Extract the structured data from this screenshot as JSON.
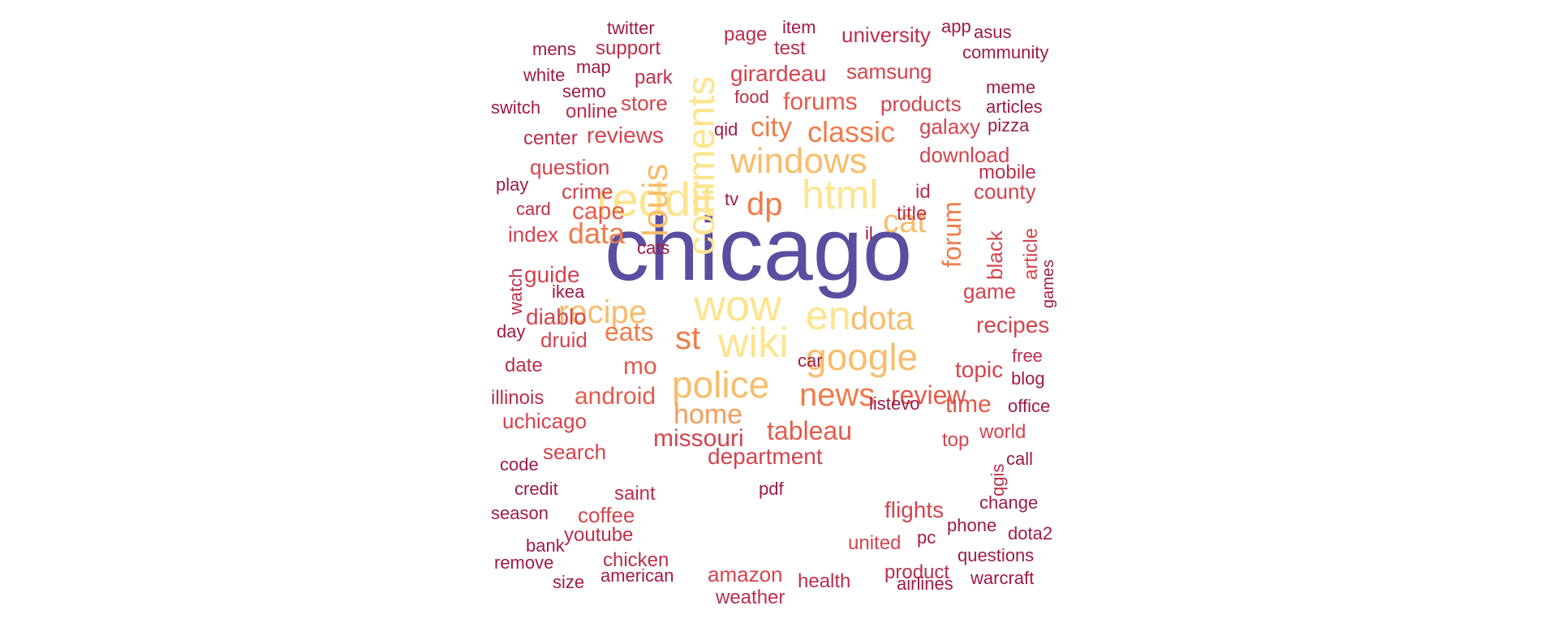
{
  "palette": {
    "c1": "#5a4ea1",
    "c2": "#fde48e",
    "c3": "#f8bd6b",
    "c4": "#f49d5a",
    "c5": "#ef7c4a",
    "c6": "#e35b4a",
    "c7": "#d3444f",
    "c8": "#bb2f4b",
    "c9": "#9e1b46"
  },
  "words": [
    {
      "text": "chicago",
      "color": "c1"
    },
    {
      "text": "reddit",
      "color": "c2"
    },
    {
      "text": "wow",
      "color": "c2"
    },
    {
      "text": "wiki",
      "color": "c2"
    },
    {
      "text": "comments",
      "color": "c2"
    },
    {
      "text": "html",
      "color": "c2"
    },
    {
      "text": "en",
      "color": "c2"
    },
    {
      "text": "police",
      "color": "c3"
    },
    {
      "text": "google",
      "color": "c3"
    },
    {
      "text": "windows",
      "color": "c3"
    },
    {
      "text": "louis",
      "color": "c3"
    },
    {
      "text": "recipe",
      "color": "c3"
    },
    {
      "text": "dota",
      "color": "c3"
    },
    {
      "text": "cat",
      "color": "c3"
    },
    {
      "text": "news",
      "color": "c5"
    },
    {
      "text": "home",
      "color": "c4"
    },
    {
      "text": "dp",
      "color": "c5"
    },
    {
      "text": "st",
      "color": "c5"
    },
    {
      "text": "classic",
      "color": "c5"
    },
    {
      "text": "city",
      "color": "c5"
    },
    {
      "text": "data",
      "color": "c5"
    },
    {
      "text": "forum",
      "color": "c5"
    },
    {
      "text": "eats",
      "color": "c5"
    },
    {
      "text": "review",
      "color": "c6"
    },
    {
      "text": "tableau",
      "color": "c6"
    },
    {
      "text": "android",
      "color": "c6"
    },
    {
      "text": "time",
      "color": "c6"
    },
    {
      "text": "missouri",
      "color": "c7"
    },
    {
      "text": "forums",
      "color": "c6"
    },
    {
      "text": "mo",
      "color": "c6"
    },
    {
      "text": "cape",
      "color": "c6"
    },
    {
      "text": "department",
      "color": "c7"
    },
    {
      "text": "recipes",
      "color": "c7"
    },
    {
      "text": "topic",
      "color": "c7"
    },
    {
      "text": "girardeau",
      "color": "c7"
    },
    {
      "text": "guide",
      "color": "c7"
    },
    {
      "text": "diablo",
      "color": "c7"
    },
    {
      "text": "reviews",
      "color": "c7"
    },
    {
      "text": "flights",
      "color": "c7"
    },
    {
      "text": "black",
      "color": "c7"
    },
    {
      "text": "druid",
      "color": "c7"
    },
    {
      "text": "download",
      "color": "c7"
    },
    {
      "text": "question",
      "color": "c7"
    },
    {
      "text": "samsung",
      "color": "c7"
    },
    {
      "text": "products",
      "color": "c7"
    },
    {
      "text": "galaxy",
      "color": "c7"
    },
    {
      "text": "county",
      "color": "c7"
    },
    {
      "text": "game",
      "color": "c7"
    },
    {
      "text": "uchicago",
      "color": "c7"
    },
    {
      "text": "search",
      "color": "c7"
    },
    {
      "text": "coffee",
      "color": "c7"
    },
    {
      "text": "amazon",
      "color": "c7"
    },
    {
      "text": "united",
      "color": "c7"
    },
    {
      "text": "top",
      "color": "c7"
    },
    {
      "text": "world",
      "color": "c7"
    },
    {
      "text": "crime",
      "color": "c7"
    },
    {
      "text": "index",
      "color": "c7"
    },
    {
      "text": "store",
      "color": "c7"
    },
    {
      "text": "university",
      "color": "c8"
    },
    {
      "text": "article",
      "color": "c7"
    },
    {
      "text": "health",
      "color": "c8"
    },
    {
      "text": "chicken",
      "color": "c8"
    },
    {
      "text": "product",
      "color": "c8"
    },
    {
      "text": "weather",
      "color": "c8"
    },
    {
      "text": "youtube",
      "color": "c8"
    },
    {
      "text": "page",
      "color": "c8"
    },
    {
      "text": "support",
      "color": "c8"
    },
    {
      "text": "park",
      "color": "c8"
    },
    {
      "text": "online",
      "color": "c8"
    },
    {
      "text": "center",
      "color": "c8"
    },
    {
      "text": "mobile",
      "color": "c8"
    },
    {
      "text": "test",
      "color": "c8"
    },
    {
      "text": "id",
      "color": "c8"
    },
    {
      "text": "title",
      "color": "c8"
    },
    {
      "text": "saint",
      "color": "c8"
    },
    {
      "text": "date",
      "color": "c8"
    },
    {
      "text": "illinois",
      "color": "c8"
    },
    {
      "text": "watch",
      "color": "c8"
    },
    {
      "text": "free",
      "color": "c8"
    },
    {
      "text": "food",
      "color": "c8"
    },
    {
      "text": "card",
      "color": "c8"
    },
    {
      "text": "qgis",
      "color": "c8"
    },
    {
      "text": "car",
      "color": "c9"
    },
    {
      "text": "cats",
      "color": "c9"
    },
    {
      "text": "ikea",
      "color": "c9"
    },
    {
      "text": "item",
      "color": "c9"
    },
    {
      "text": "twitter",
      "color": "c9"
    },
    {
      "text": "mens",
      "color": "c9"
    },
    {
      "text": "white",
      "color": "c9"
    },
    {
      "text": "map",
      "color": "c9"
    },
    {
      "text": "semo",
      "color": "c9"
    },
    {
      "text": "switch",
      "color": "c9"
    },
    {
      "text": "qid",
      "color": "c9"
    },
    {
      "text": "play",
      "color": "c9"
    },
    {
      "text": "tv",
      "color": "c9"
    },
    {
      "text": "il",
      "color": "c9"
    },
    {
      "text": "day",
      "color": "c9"
    },
    {
      "text": "list",
      "color": "c9"
    },
    {
      "text": "evo",
      "color": "c9"
    },
    {
      "text": "code",
      "color": "c9"
    },
    {
      "text": "credit",
      "color": "c9"
    },
    {
      "text": "pdf",
      "color": "c9"
    },
    {
      "text": "season",
      "color": "c9"
    },
    {
      "text": "bank",
      "color": "c9"
    },
    {
      "text": "remove",
      "color": "c9"
    },
    {
      "text": "size",
      "color": "c9"
    },
    {
      "text": "american",
      "color": "c9"
    },
    {
      "text": "airlines",
      "color": "c9"
    },
    {
      "text": "warcraft",
      "color": "c9"
    },
    {
      "text": "questions",
      "color": "c9"
    },
    {
      "text": "phone",
      "color": "c9"
    },
    {
      "text": "pc",
      "color": "c9"
    },
    {
      "text": "dota2",
      "color": "c9"
    },
    {
      "text": "change",
      "color": "c9"
    },
    {
      "text": "call",
      "color": "c9"
    },
    {
      "text": "office",
      "color": "c9"
    },
    {
      "text": "blog",
      "color": "c9"
    },
    {
      "text": "games",
      "color": "c9"
    },
    {
      "text": "pizza",
      "color": "c9"
    },
    {
      "text": "articles",
      "color": "c9"
    },
    {
      "text": "meme",
      "color": "c9"
    },
    {
      "text": "community",
      "color": "c9"
    },
    {
      "text": "asus",
      "color": "c9"
    },
    {
      "text": "app",
      "color": "c9"
    }
  ]
}
